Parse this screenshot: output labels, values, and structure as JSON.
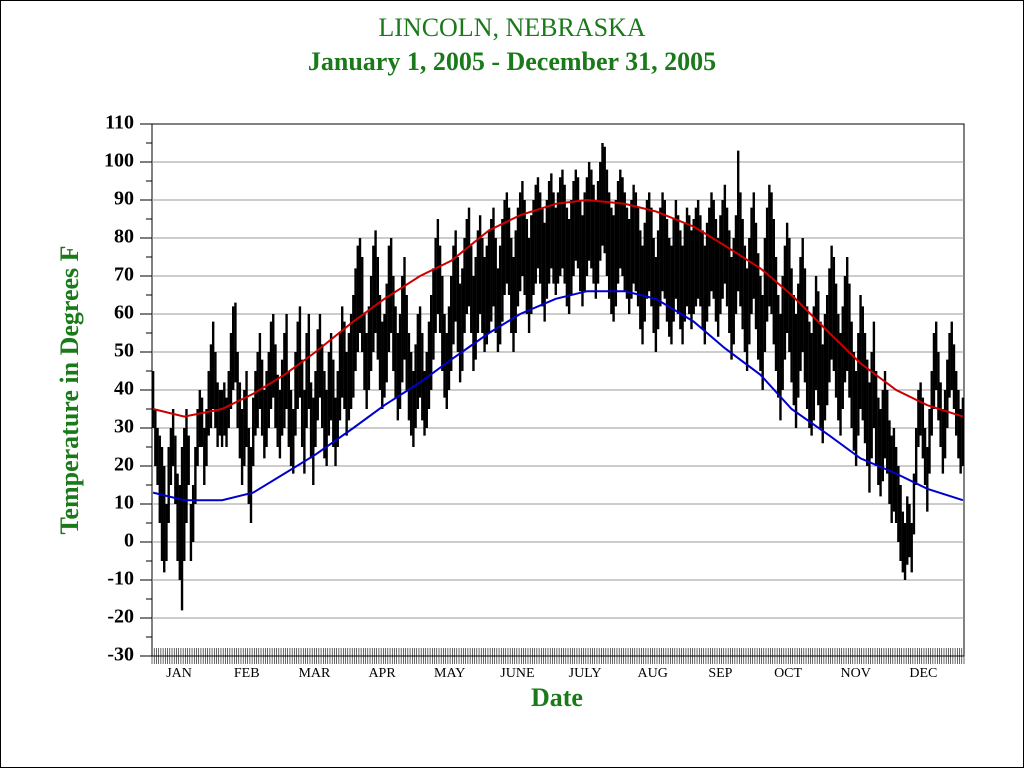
{
  "chart_data": {
    "type": "range",
    "title": "LINCOLN, NEBRASKA",
    "subtitle": "January 1, 2005 - December 31, 2005",
    "y_label": "Temperature in Degrees F",
    "x_label": "Date",
    "ylim": [
      -30,
      110
    ],
    "yticks": [
      -30,
      -20,
      -10,
      0,
      10,
      20,
      30,
      40,
      50,
      60,
      70,
      80,
      90,
      100,
      110
    ],
    "grid": true,
    "categories": [
      "JAN",
      "FEB",
      "MAR",
      "APR",
      "MAY",
      "JUNE",
      "JULY",
      "AUG",
      "SEP",
      "OCT",
      "NOV",
      "DEC"
    ],
    "daily_color": "#000000",
    "daily_high": [
      45,
      35,
      30,
      28,
      25,
      20,
      10,
      25,
      30,
      35,
      28,
      18,
      15,
      25,
      30,
      35,
      28,
      10,
      15,
      25,
      35,
      40,
      38,
      30,
      35,
      45,
      52,
      58,
      50,
      42,
      40,
      40,
      42,
      38,
      45,
      55,
      62,
      63,
      50,
      42,
      35,
      40,
      45,
      30,
      25,
      38,
      45,
      50,
      55,
      48,
      40,
      45,
      50,
      58,
      60,
      52,
      44,
      40,
      48,
      55,
      60,
      45,
      40,
      35,
      50,
      58,
      62,
      48,
      40,
      55,
      60,
      42,
      38,
      45,
      56,
      60,
      52,
      45,
      40,
      50,
      55,
      48,
      38,
      45,
      55,
      62,
      58,
      50,
      55,
      60,
      65,
      72,
      78,
      80,
      75,
      60,
      55,
      62,
      70,
      78,
      82,
      75,
      65,
      58,
      60,
      68,
      78,
      80,
      70,
      62,
      55,
      60,
      70,
      75,
      65,
      55,
      50,
      45,
      52,
      60,
      62,
      55,
      45,
      50,
      58,
      65,
      72,
      80,
      85,
      78,
      70,
      60,
      55,
      62,
      70,
      78,
      82,
      75,
      68,
      72,
      80,
      85,
      88,
      78,
      70,
      75,
      82,
      86,
      80,
      75,
      78,
      82,
      85,
      88,
      80,
      72,
      78,
      85,
      90,
      92,
      88,
      80,
      75,
      82,
      88,
      92,
      95,
      90,
      85,
      80,
      86,
      90,
      94,
      96,
      92,
      88,
      84,
      90,
      95,
      97,
      92,
      88,
      92,
      96,
      98,
      94,
      88,
      85,
      90,
      95,
      98,
      96,
      90,
      86,
      92,
      96,
      100,
      98,
      94,
      90,
      95,
      100,
      105,
      104,
      98,
      92,
      88,
      86,
      90,
      95,
      98,
      96,
      92,
      88,
      85,
      90,
      94,
      92,
      88,
      82,
      78,
      84,
      90,
      92,
      88,
      80,
      75,
      82,
      88,
      92,
      90,
      85,
      80,
      78,
      85,
      90,
      86,
      82,
      78,
      84,
      88,
      86,
      82,
      85,
      88,
      90,
      86,
      82,
      78,
      84,
      88,
      92,
      90,
      85,
      80,
      86,
      90,
      94,
      88,
      82,
      75,
      80,
      86,
      103,
      92,
      85,
      78,
      72,
      80,
      88,
      92,
      84,
      76,
      70,
      65,
      80,
      88,
      94,
      92,
      85,
      75,
      65,
      60,
      70,
      78,
      84,
      80,
      72,
      65,
      60,
      68,
      75,
      80,
      72,
      62,
      58,
      55,
      62,
      70,
      66,
      58,
      52,
      60,
      65,
      72,
      78,
      75,
      68,
      60,
      55,
      62,
      70,
      75,
      68,
      58,
      50,
      45,
      55,
      65,
      62,
      55,
      48,
      42,
      50,
      58,
      45,
      38,
      35,
      40,
      45,
      40,
      32,
      28,
      30,
      25,
      20,
      15,
      8,
      5,
      12,
      10,
      5,
      18,
      30,
      40,
      42,
      38,
      30,
      25,
      35,
      45,
      55,
      58,
      50,
      42,
      35,
      40,
      48,
      55,
      58,
      52,
      45,
      40,
      35,
      38
    ],
    "daily_low": [
      30,
      20,
      15,
      5,
      -5,
      -8,
      -5,
      5,
      15,
      20,
      10,
      -5,
      -10,
      -18,
      -5,
      5,
      15,
      -5,
      0,
      10,
      20,
      25,
      25,
      15,
      20,
      28,
      30,
      35,
      30,
      25,
      28,
      25,
      28,
      25,
      30,
      35,
      40,
      42,
      30,
      22,
      15,
      20,
      25,
      10,
      5,
      20,
      28,
      30,
      35,
      28,
      22,
      25,
      30,
      35,
      38,
      30,
      25,
      22,
      28,
      30,
      35,
      25,
      20,
      18,
      28,
      35,
      38,
      25,
      18,
      30,
      35,
      22,
      15,
      25,
      32,
      38,
      30,
      22,
      20,
      28,
      32,
      25,
      20,
      25,
      32,
      38,
      35,
      28,
      32,
      35,
      38,
      45,
      50,
      55,
      50,
      40,
      35,
      40,
      45,
      50,
      55,
      48,
      40,
      35,
      38,
      42,
      50,
      55,
      45,
      38,
      32,
      35,
      42,
      48,
      40,
      32,
      28,
      25,
      30,
      35,
      38,
      32,
      28,
      30,
      35,
      40,
      48,
      55,
      60,
      55,
      45,
      38,
      35,
      40,
      45,
      52,
      58,
      50,
      42,
      45,
      55,
      60,
      62,
      55,
      45,
      48,
      55,
      60,
      55,
      50,
      52,
      55,
      58,
      62,
      55,
      50,
      52,
      58,
      65,
      68,
      65,
      55,
      50,
      55,
      62,
      66,
      70,
      65,
      60,
      55,
      60,
      65,
      68,
      72,
      68,
      62,
      58,
      64,
      68,
      72,
      68,
      65,
      68,
      70,
      72,
      68,
      62,
      60,
      65,
      70,
      74,
      72,
      66,
      62,
      66,
      70,
      74,
      72,
      68,
      64,
      68,
      74,
      78,
      76,
      70,
      64,
      60,
      58,
      62,
      68,
      72,
      70,
      66,
      64,
      60,
      64,
      68,
      66,
      62,
      56,
      52,
      58,
      64,
      66,
      62,
      55,
      50,
      56,
      62,
      66,
      64,
      58,
      54,
      52,
      58,
      64,
      60,
      56,
      52,
      58,
      62,
      60,
      56,
      60,
      62,
      64,
      62,
      56,
      52,
      58,
      62,
      66,
      64,
      58,
      54,
      60,
      64,
      68,
      62,
      55,
      48,
      52,
      60,
      66,
      62,
      56,
      50,
      45,
      52,
      60,
      64,
      56,
      48,
      45,
      40,
      50,
      58,
      62,
      60,
      52,
      45,
      38,
      32,
      40,
      48,
      55,
      50,
      42,
      36,
      30,
      38,
      45,
      50,
      42,
      35,
      30,
      28,
      32,
      40,
      36,
      30,
      26,
      32,
      36,
      42,
      48,
      45,
      38,
      32,
      28,
      35,
      42,
      45,
      38,
      30,
      24,
      20,
      28,
      35,
      32,
      26,
      20,
      13,
      22,
      30,
      20,
      15,
      12,
      16,
      22,
      18,
      10,
      5,
      8,
      5,
      0,
      -5,
      -8,
      -10,
      -6,
      -4,
      -8,
      2,
      15,
      25,
      28,
      22,
      15,
      8,
      18,
      28,
      35,
      40,
      32,
      25,
      18,
      22,
      30,
      38,
      40,
      35,
      28,
      22,
      18,
      20
    ],
    "normal_days": [
      1,
      15,
      32,
      46,
      60,
      74,
      91,
      105,
      121,
      135,
      152,
      166,
      182,
      196,
      213,
      227,
      244,
      258,
      274,
      288,
      305,
      319,
      335,
      349,
      365
    ],
    "normal_high": {
      "color": "#cc0000",
      "values": [
        35,
        33,
        35,
        39,
        44,
        50,
        58,
        64,
        70,
        74,
        82,
        86,
        89,
        90,
        89,
        87,
        83,
        78,
        72,
        65,
        55,
        47,
        40,
        36,
        33
      ]
    },
    "normal_low": {
      "color": "#0000cc",
      "values": [
        13,
        11,
        11,
        13,
        18,
        23,
        30,
        36,
        42,
        48,
        55,
        60,
        64,
        66,
        66,
        64,
        58,
        51,
        44,
        35,
        28,
        22,
        18,
        14,
        11
      ]
    }
  }
}
